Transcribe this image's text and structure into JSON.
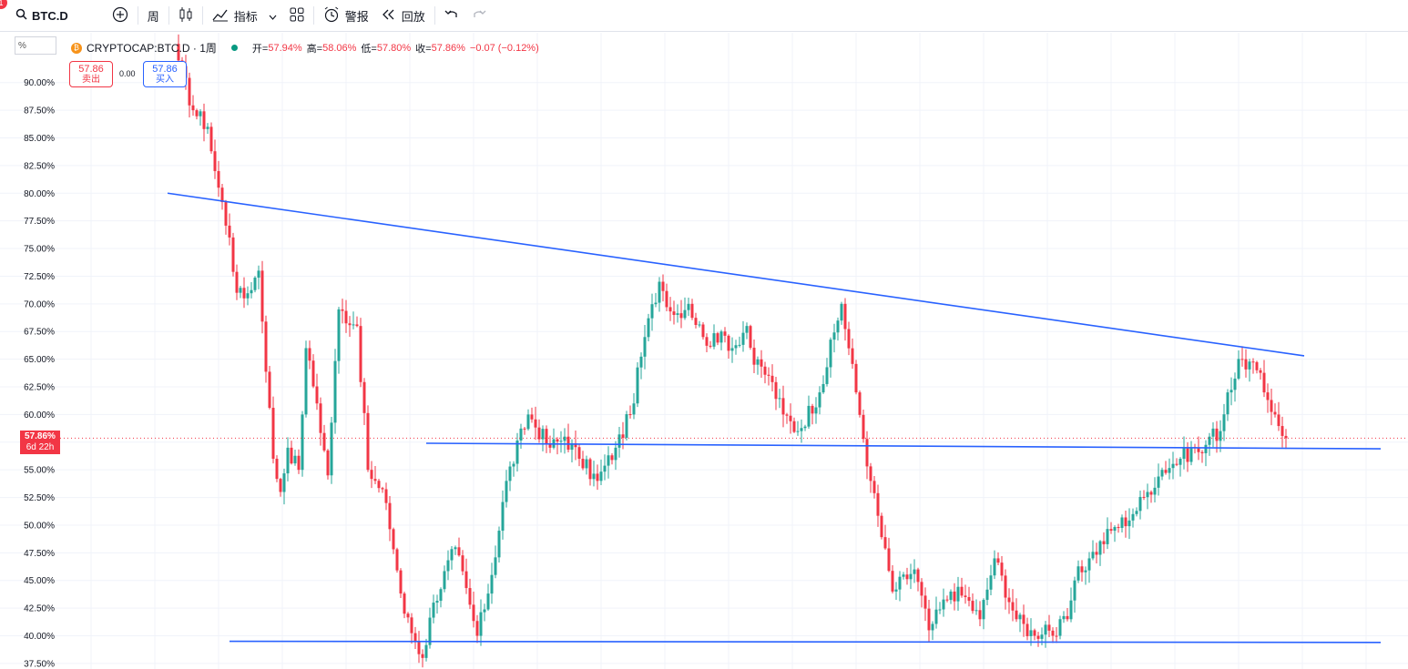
{
  "toolbar": {
    "notification_count": "1",
    "symbol": "BTC.D",
    "interval": "周",
    "indicators_label": "指标",
    "alert_label": "警报",
    "replay_label": "回放"
  },
  "legend": {
    "symbol_name": "CRYPTOCAP:BTC.D · 1周",
    "open_label": "开=",
    "open": "57.94%",
    "high_label": "高=",
    "high": "58.06%",
    "low_label": "低=",
    "low": "57.80%",
    "close_label": "收=",
    "close": "57.86%",
    "change": "−0.07 (−0.12%)"
  },
  "price_boxes": {
    "unit": "%",
    "sell_price": "57.86",
    "sell_label": "卖出",
    "spread": "0.00",
    "buy_price": "57.86",
    "buy_label": "买入"
  },
  "last_price": {
    "price": "57.86%",
    "countdown": "6d 22h"
  },
  "colors": {
    "up": "#26a69a",
    "down": "#f23645",
    "trendline": "#2962ff",
    "grid": "#f0f3fa",
    "text": "#131722"
  },
  "chart_data": {
    "type": "candlestick",
    "title": "CRYPTOCAP:BTC.D · 1周",
    "ylim": [
      37.0,
      94.5
    ],
    "y_ticks": [
      "90.00%",
      "87.50%",
      "85.00%",
      "82.50%",
      "80.00%",
      "77.50%",
      "75.00%",
      "72.50%",
      "70.00%",
      "67.50%",
      "65.00%",
      "62.50%",
      "60.00%",
      "57.50%",
      "55.00%",
      "52.50%",
      "50.00%",
      "47.50%",
      "45.00%",
      "42.50%",
      "40.00%",
      "37.50%"
    ],
    "grid": true,
    "last_close": 57.86,
    "path_bar_index": [
      0,
      4,
      8,
      10,
      14,
      16,
      18,
      22,
      26,
      28,
      30,
      33,
      35,
      38,
      41,
      44,
      49,
      52,
      57,
      62,
      67,
      70,
      76,
      82,
      86,
      90,
      96,
      102,
      106,
      110,
      115,
      120,
      124,
      128,
      132,
      136,
      140,
      144,
      148,
      149,
      152,
      156,
      158,
      162,
      166,
      170,
      176,
      182,
      186,
      190,
      196,
      202,
      206,
      212,
      216,
      220,
      224,
      230,
      235,
      238,
      240,
      244,
      246,
      250,
      256,
      262,
      266,
      270,
      275,
      279,
      281,
      283,
      286,
      288,
      292,
      296,
      298,
      301,
      304
    ],
    "path_close": [
      92.0,
      87.5,
      86.0,
      82.0,
      76.0,
      71.0,
      70.5,
      73.0,
      56.0,
      53.0,
      57.0,
      55.0,
      66.0,
      61.0,
      54.5,
      69.5,
      68.0,
      55.0,
      52.0,
      42.0,
      38.0,
      43.0,
      48.0,
      40.0,
      45.5,
      54.0,
      60.0,
      57.0,
      58.0,
      56.0,
      54.0,
      57.0,
      60.0,
      67.0,
      72.0,
      69.0,
      70.0,
      67.0,
      66.5,
      67.5,
      66.0,
      68.0,
      64.5,
      63.5,
      60.0,
      58.5,
      62.0,
      70.0,
      62.0,
      54.0,
      44.0,
      46.0,
      40.5,
      44.0,
      43.5,
      41.5,
      47.0,
      41.5,
      40.0,
      41.0,
      40.0,
      41.5,
      45.0,
      47.0,
      49.5,
      51.0,
      53.0,
      55.0,
      56.0,
      57.0,
      56.5,
      58.0,
      58.5,
      62.0,
      65.0,
      64.0,
      62.0,
      60.0,
      57.86
    ],
    "bar_count": 305,
    "trend_lines": [
      {
        "name": "descending-resistance",
        "from": {
          "bar": -3,
          "y": 80.0
        },
        "to": {
          "bar": 309,
          "y": 65.3
        }
      },
      {
        "name": "mid-support",
        "from": {
          "bar": 68,
          "y": 57.4
        },
        "to": {
          "bar": 330,
          "y": 56.9
        }
      },
      {
        "name": "bottom-support",
        "from": {
          "bar": 14,
          "y": 39.5
        },
        "to": {
          "bar": 330,
          "y": 39.4
        }
      }
    ]
  }
}
